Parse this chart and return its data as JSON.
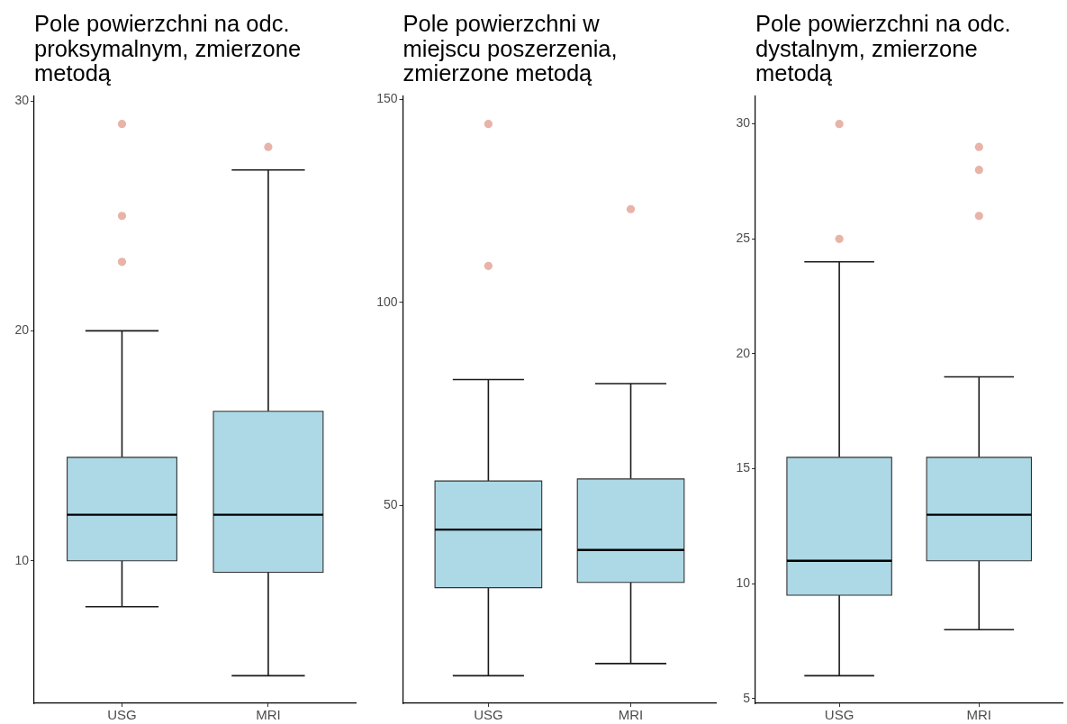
{
  "chart_data": [
    {
      "type": "box",
      "title": "Pole powierzchni na odc. proksymalnym, zmierzone metodą",
      "categories": [
        "USG",
        "MRI"
      ],
      "color": "#add8e6",
      "boxes": [
        {
          "low": 8,
          "q1": 10,
          "median": 12,
          "q3": 14.5,
          "high": 20,
          "outliers": [
            29,
            25,
            23
          ]
        },
        {
          "low": 5,
          "q1": 9.5,
          "median": 12,
          "q3": 16.5,
          "high": 27,
          "outliers": [
            28
          ]
        }
      ],
      "ylim": [
        3.8,
        30.2
      ],
      "yticks": [
        10,
        20,
        30
      ]
    },
    {
      "type": "box",
      "title": "Pole powierzchni w miejscu poszerzenia, zmierzone metodą",
      "categories": [
        "USG",
        "MRI"
      ],
      "color": "#add8e6",
      "boxes": [
        {
          "low": 8,
          "q1": 29.7,
          "median": 44,
          "q3": 56,
          "high": 81,
          "outliers": [
            144,
            109
          ]
        },
        {
          "low": 11,
          "q1": 31,
          "median": 39,
          "q3": 56.5,
          "high": 80,
          "outliers": [
            123
          ]
        }
      ],
      "ylim": [
        1.2,
        150.8
      ],
      "yticks": [
        50,
        100,
        150
      ]
    },
    {
      "type": "box",
      "title": "Pole powierzchni na odc. dystalnym, zmierzone metodą",
      "categories": [
        "USG",
        "MRI"
      ],
      "color": "#add8e6",
      "boxes": [
        {
          "low": 6,
          "q1": 9.5,
          "median": 11,
          "q3": 15.5,
          "high": 24,
          "outliers": [
            30,
            25
          ]
        },
        {
          "low": 8,
          "q1": 11,
          "median": 13,
          "q3": 15.5,
          "high": 19,
          "outliers": [
            29,
            28,
            26
          ]
        }
      ],
      "ylim": [
        4.8,
        31.2
      ],
      "yticks": [
        5,
        10,
        15,
        20,
        25,
        30
      ]
    }
  ]
}
